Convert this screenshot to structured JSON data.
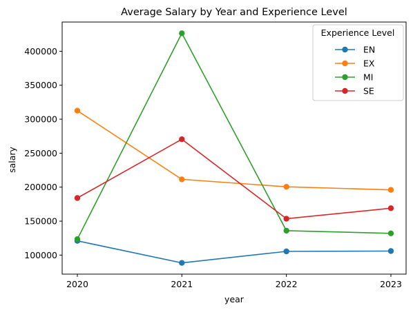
{
  "chart_data": {
    "type": "line",
    "title": "Average Salary by Year and Experience Level",
    "xlabel": "year",
    "ylabel": "salary",
    "x": [
      "2020",
      "2021",
      "2022",
      "2023"
    ],
    "ylim": [
      72000,
      443000
    ],
    "yticks": [
      "100000",
      "150000",
      "200000",
      "250000",
      "300000",
      "350000",
      "400000"
    ],
    "grid": false,
    "legend": {
      "title": "Experience Level",
      "placement": "top-right"
    },
    "series": [
      {
        "name": "EN",
        "color": "#1f77b4",
        "values": [
          121000,
          88500,
          105500,
          106000
        ]
      },
      {
        "name": "EX",
        "color": "#ff7f0e",
        "values": [
          312500,
          211500,
          200500,
          196000
        ]
      },
      {
        "name": "MI",
        "color": "#2ca02c",
        "values": [
          123500,
          426500,
          136000,
          132000
        ]
      },
      {
        "name": "SE",
        "color": "#d62728",
        "values": [
          184000,
          270500,
          153500,
          169000
        ]
      }
    ]
  }
}
